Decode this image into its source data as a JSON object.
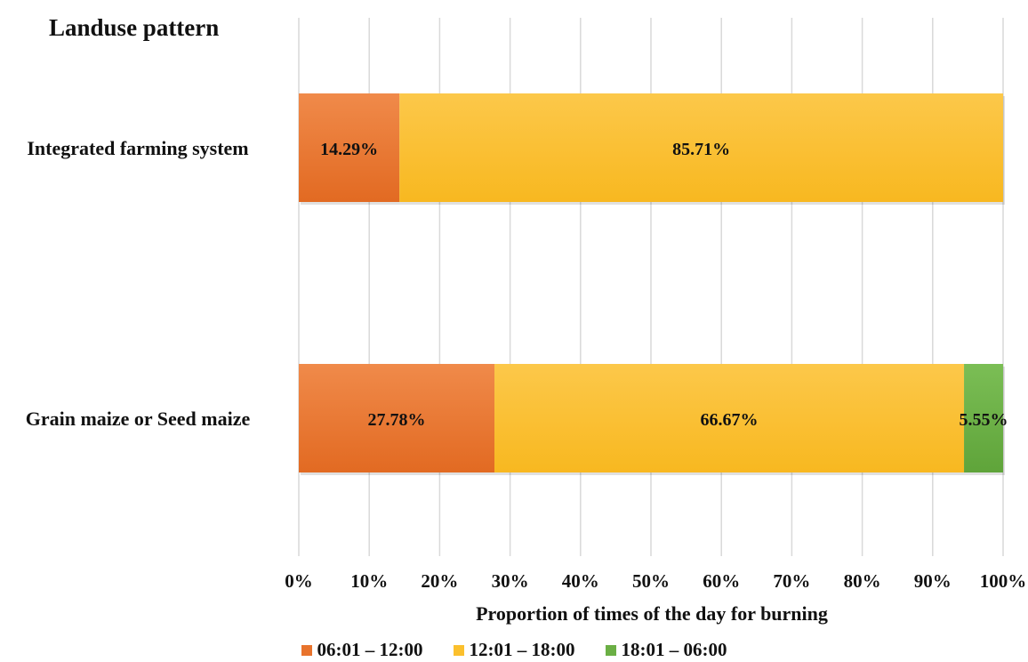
{
  "chart_data": {
    "type": "bar",
    "orientation": "horizontal",
    "stacked": true,
    "ytitle": "Landuse pattern",
    "xlabel": "Proportion of times of the day for burning",
    "categories": [
      "Integrated farming system",
      "Grain maize or Seed maize"
    ],
    "series": [
      {
        "name": "06:01 – 12:00",
        "color": "#E8732C",
        "values": [
          14.29,
          27.78
        ],
        "labels": [
          "14.29%",
          "27.78%"
        ]
      },
      {
        "name": "12:01 – 18:00",
        "color": "#FBC02D",
        "values": [
          85.71,
          66.67
        ],
        "labels": [
          "85.71%",
          "66.67%"
        ]
      },
      {
        "name": "18:01 – 06:00",
        "color": "#6BAF45",
        "values": [
          0,
          5.55
        ],
        "labels": [
          "",
          "5.55%"
        ]
      }
    ],
    "xlim": [
      0,
      100
    ],
    "xticks": [
      "0%",
      "10%",
      "20%",
      "30%",
      "40%",
      "50%",
      "60%",
      "70%",
      "80%",
      "90%",
      "100%"
    ],
    "grid": true,
    "legend_position": "bottom"
  }
}
